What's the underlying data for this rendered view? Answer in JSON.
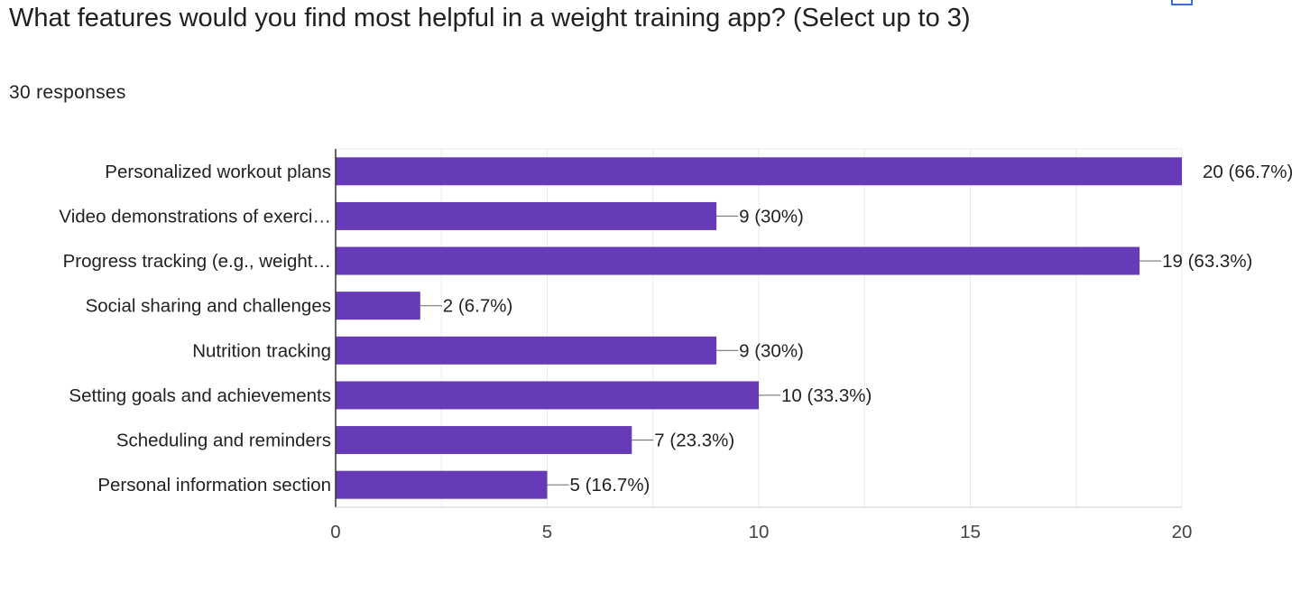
{
  "question": {
    "title": "What features would you find most helpful in a weight training app? (Select up to 3)",
    "responses": "30 responses"
  },
  "colors": {
    "bar": "#673ab7",
    "grid": "#ebebeb",
    "axis": "#333333",
    "leader": "#777777"
  },
  "chart_data": {
    "type": "bar",
    "orientation": "horizontal",
    "categories": [
      "Personalized workout plans",
      "Video demonstrations of exerci…",
      "Progress tracking (e.g., weight…",
      "Social sharing and challenges",
      "Nutrition tracking",
      "Setting goals and achievements",
      "Scheduling and reminders",
      "Personal information section"
    ],
    "values": [
      20,
      9,
      19,
      2,
      9,
      10,
      7,
      5
    ],
    "data_labels": [
      "20 (66.7%)",
      "9 (30%)",
      "19 (63.3%)",
      "2 (6.7%)",
      "9 (30%)",
      "10 (33.3%)",
      "7 (23.3%)",
      "5 (16.7%)"
    ],
    "xlim": [
      0,
      20
    ],
    "xticks": [
      0,
      5,
      10,
      15,
      20
    ],
    "grid": true
  }
}
